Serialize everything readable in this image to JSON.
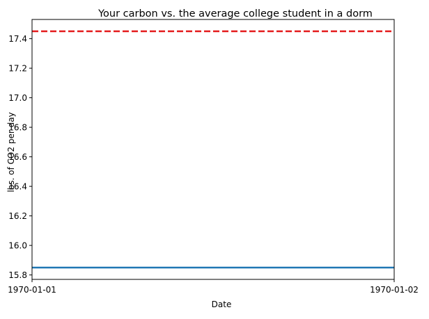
{
  "chart_data": {
    "type": "line",
    "title": "Your carbon vs. the average college student in a dorm",
    "xlabel": "Date",
    "ylabel": "lbs. of CO2 per day",
    "x_ticks": [
      "1970-01-01",
      "1970-01-02"
    ],
    "x_range": [
      "1970-01-01",
      "1970-01-02"
    ],
    "ylim": [
      15.77,
      17.53
    ],
    "y_ticks": [
      15.8,
      16.0,
      16.2,
      16.4,
      16.6,
      16.8,
      17.0,
      17.2,
      17.4
    ],
    "y_tick_labels": [
      "15.8",
      "16.0",
      "16.2",
      "16.4",
      "16.6",
      "16.8",
      "17.0",
      "17.2",
      "17.4"
    ],
    "grid": false,
    "series": [
      {
        "color": "#1f77b4",
        "style": "solid",
        "x": [
          "1970-01-01",
          "1970-01-02"
        ],
        "y": [
          15.85,
          15.85
        ]
      },
      {
        "color": "#e41a1c",
        "style": "dashed",
        "x": [
          "1970-01-01",
          "1970-01-02"
        ],
        "y": [
          17.45,
          17.45
        ]
      }
    ]
  }
}
